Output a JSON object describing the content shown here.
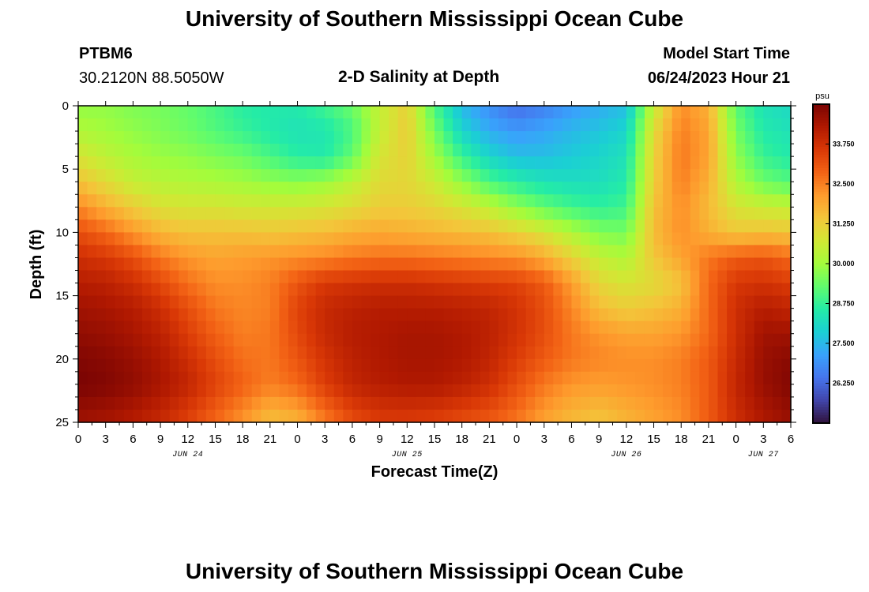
{
  "header": {
    "title": "University of Southern Mississippi Ocean Cube",
    "station": "PTBM6",
    "coords": "30.2120N  88.5050W",
    "subtitle": "2-D Salinity at Depth",
    "model_label": "Model Start Time",
    "model_time": "06/24/2023 Hour 21"
  },
  "footer": {
    "title": "University of Southern Mississippi Ocean Cube"
  },
  "chart_data": {
    "type": "heatmap",
    "title": "2-D Salinity at Depth",
    "xlabel": "Forecast Time(Z)",
    "ylabel": "Depth (ft)",
    "x_range_hours": [
      0,
      78
    ],
    "y_range": [
      0,
      25
    ],
    "y_ticks": [
      0,
      5,
      10,
      15,
      20,
      25
    ],
    "x_tick_labels": [
      "0",
      "3",
      "6",
      "9",
      "12",
      "15",
      "18",
      "21",
      "0",
      "3",
      "6",
      "9",
      "12",
      "15",
      "18",
      "21",
      "0",
      "3",
      "6",
      "9",
      "12",
      "15",
      "18",
      "21",
      "0",
      "3",
      "6"
    ],
    "day_labels": [
      {
        "text": "JUN 24",
        "hour": 12
      },
      {
        "text": "JUN 25",
        "hour": 36
      },
      {
        "text": "JUN 26",
        "hour": 60
      },
      {
        "text": "JUN 27",
        "hour": 75
      }
    ],
    "colorbar": {
      "unit": "psu",
      "min": 25.0,
      "max": 35.0,
      "ticks": [
        "33.750",
        "32.500",
        "31.250",
        "30.000",
        "28.750",
        "27.500",
        "26.250"
      ],
      "colors": [
        "#30123b",
        "#4145ab",
        "#4675ed",
        "#39a2fc",
        "#1bcfd4",
        "#24eca6",
        "#61fc6c",
        "#a4fc3b",
        "#d1e834",
        "#f3c63a",
        "#fe9b2d",
        "#f36315",
        "#d93806",
        "#b11901",
        "#7a0403"
      ]
    },
    "salinity_grid": {
      "depths_ft": [
        0,
        2,
        4,
        6,
        8,
        10,
        12,
        14,
        16,
        18,
        20,
        22,
        25
      ],
      "hours": [
        0,
        3,
        6,
        9,
        12,
        15,
        18,
        21,
        24,
        27,
        30,
        33,
        36,
        39,
        42,
        45,
        48,
        51,
        54,
        57,
        60,
        63,
        66,
        69,
        72,
        75,
        78
      ],
      "values": [
        [
          29.8,
          29.8,
          29.6,
          29.5,
          29.3,
          29.0,
          28.6,
          28.5,
          28.5,
          28.9,
          29.4,
          30.5,
          31.2,
          29.0,
          27.5,
          26.8,
          26.3,
          26.6,
          27.0,
          27.3,
          27.6,
          30.5,
          32.3,
          31.8,
          29.2,
          28.3,
          28.1
        ],
        [
          30.2,
          30.0,
          29.8,
          29.6,
          29.4,
          29.1,
          28.8,
          28.5,
          28.3,
          28.4,
          29.0,
          30.5,
          31.3,
          29.5,
          28.0,
          27.3,
          27.0,
          27.2,
          27.5,
          27.7,
          28.0,
          31.0,
          32.5,
          32.0,
          29.5,
          28.5,
          28.3
        ],
        [
          30.8,
          30.4,
          30.1,
          29.9,
          29.8,
          29.6,
          29.4,
          29.0,
          28.6,
          28.5,
          29.3,
          30.8,
          31.2,
          30.0,
          28.8,
          28.0,
          27.6,
          27.6,
          27.8,
          28.0,
          28.3,
          31.2,
          32.6,
          32.0,
          29.8,
          28.8,
          28.5
        ],
        [
          31.5,
          31.0,
          30.5,
          30.3,
          30.2,
          30.1,
          30.0,
          29.8,
          29.7,
          29.9,
          30.4,
          31.0,
          31.1,
          30.6,
          29.8,
          29.0,
          28.6,
          28.3,
          28.2,
          28.2,
          28.5,
          31.3,
          32.5,
          31.8,
          30.2,
          29.4,
          29.1
        ],
        [
          32.4,
          31.8,
          31.3,
          30.9,
          30.8,
          30.8,
          30.7,
          30.7,
          30.7,
          30.8,
          31.0,
          31.3,
          31.3,
          31.1,
          30.8,
          30.4,
          29.8,
          29.3,
          28.9,
          28.7,
          28.9,
          31.5,
          32.3,
          31.6,
          30.8,
          30.6,
          30.5
        ],
        [
          33.2,
          32.8,
          32.2,
          31.7,
          31.5,
          31.5,
          31.5,
          31.4,
          31.5,
          31.6,
          31.8,
          31.9,
          31.8,
          31.7,
          31.6,
          31.5,
          31.2,
          30.8,
          30.2,
          29.6,
          29.5,
          31.6,
          32.3,
          31.8,
          31.4,
          31.5,
          31.4
        ],
        [
          33.8,
          33.6,
          33.2,
          32.6,
          32.2,
          32.0,
          32.1,
          32.2,
          32.3,
          32.4,
          32.6,
          32.7,
          32.7,
          32.6,
          32.5,
          32.4,
          32.3,
          31.9,
          31.2,
          30.5,
          30.2,
          31.4,
          32.0,
          32.6,
          33.0,
          33.1,
          32.8
        ],
        [
          34.2,
          34.1,
          33.8,
          33.3,
          32.7,
          32.3,
          32.3,
          32.5,
          33.1,
          33.6,
          33.7,
          33.8,
          33.8,
          33.7,
          33.6,
          33.5,
          33.4,
          33.0,
          32.1,
          31.1,
          30.8,
          31.0,
          31.5,
          32.8,
          33.6,
          33.7,
          33.5
        ],
        [
          34.5,
          34.4,
          34.2,
          33.8,
          33.2,
          32.6,
          32.4,
          32.5,
          33.4,
          33.9,
          34.1,
          34.2,
          34.2,
          34.2,
          34.1,
          34.0,
          33.7,
          33.2,
          32.4,
          31.6,
          31.3,
          31.5,
          31.8,
          32.8,
          33.8,
          34.2,
          34.0
        ],
        [
          34.7,
          34.6,
          34.4,
          34.1,
          33.5,
          32.9,
          32.5,
          32.6,
          33.3,
          33.9,
          34.2,
          34.3,
          34.4,
          34.4,
          34.3,
          34.1,
          33.7,
          33.2,
          32.6,
          32.2,
          32.0,
          32.0,
          32.2,
          32.8,
          33.8,
          34.5,
          34.5
        ],
        [
          34.9,
          34.8,
          34.6,
          34.3,
          33.8,
          33.2,
          32.7,
          32.6,
          33.1,
          33.7,
          34.1,
          34.3,
          34.4,
          34.4,
          34.3,
          34.0,
          33.5,
          33.0,
          32.6,
          32.4,
          32.3,
          32.3,
          32.5,
          33.0,
          33.9,
          34.6,
          34.8
        ],
        [
          35.0,
          34.9,
          34.7,
          34.4,
          34.0,
          33.4,
          32.9,
          32.5,
          32.8,
          33.5,
          34.0,
          34.2,
          34.3,
          34.3,
          34.1,
          33.8,
          33.2,
          32.6,
          32.2,
          32.1,
          32.2,
          32.3,
          32.5,
          33.0,
          34.0,
          34.6,
          34.9
        ],
        [
          34.5,
          34.4,
          34.2,
          33.9,
          33.4,
          32.8,
          32.2,
          31.5,
          31.7,
          32.5,
          33.2,
          33.5,
          33.5,
          33.4,
          33.2,
          33.0,
          32.6,
          32.0,
          31.6,
          31.4,
          31.7,
          32.0,
          32.3,
          33.0,
          33.8,
          34.3,
          34.6
        ]
      ]
    }
  }
}
